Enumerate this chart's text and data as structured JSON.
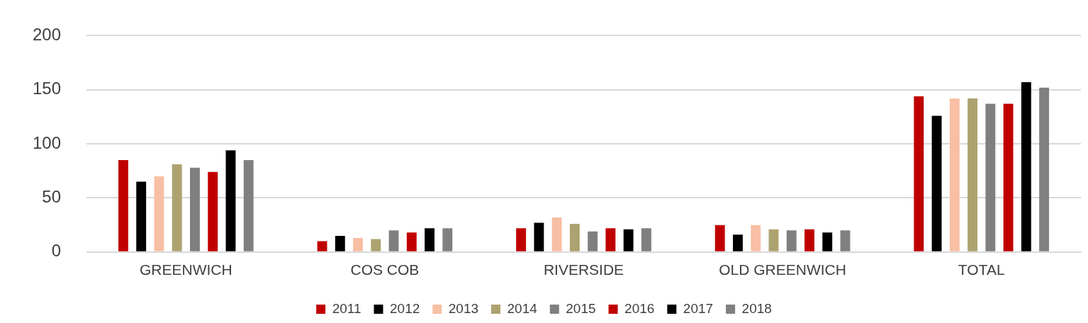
{
  "chart_data": {
    "type": "bar",
    "categories": [
      "GREENWICH",
      "COS COB",
      "RIVERSIDE",
      "OLD GREENWICH",
      "TOTAL"
    ],
    "series": [
      {
        "name": "2011",
        "color": "#c00000",
        "values": [
          85,
          10,
          22,
          25,
          144
        ]
      },
      {
        "name": "2012",
        "color": "#000000",
        "values": [
          65,
          15,
          27,
          16,
          126
        ]
      },
      {
        "name": "2013",
        "color": "#f8bfa4",
        "values": [
          70,
          13,
          32,
          25,
          142
        ]
      },
      {
        "name": "2014",
        "color": "#ada370",
        "values": [
          81,
          12,
          26,
          21,
          142
        ]
      },
      {
        "name": "2015",
        "color": "#7f7f7f",
        "values": [
          78,
          20,
          19,
          20,
          137
        ]
      },
      {
        "name": "2016",
        "color": "#c00000",
        "values": [
          74,
          18,
          22,
          21,
          137
        ]
      },
      {
        "name": "2017",
        "color": "#000000",
        "values": [
          94,
          22,
          21,
          18,
          157
        ]
      },
      {
        "name": "2018",
        "color": "#808080",
        "values": [
          85,
          22,
          22,
          20,
          152
        ]
      }
    ],
    "ylim": [
      0,
      200
    ],
    "yticks": [
      0,
      50,
      100,
      150,
      200
    ],
    "grid": "y",
    "legend": "bottom"
  }
}
